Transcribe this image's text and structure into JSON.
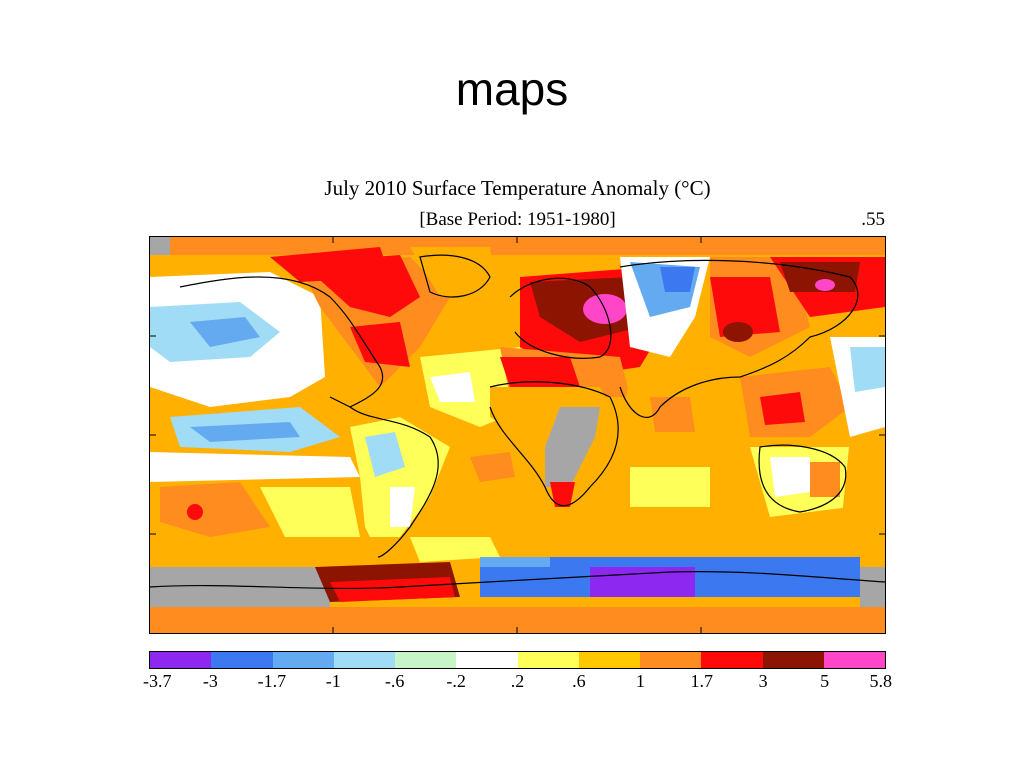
{
  "slide": {
    "title": "maps"
  },
  "map": {
    "title": "July 2010 Surface Temperature Anomaly (°C)",
    "subtitle": "[Base Period: 1951-1980]",
    "global_mean": ".55",
    "no_data_color": "#a6a6a6"
  },
  "legend": {
    "colors": [
      "#8c28f0",
      "#3c78f0",
      "#64aaf0",
      "#a0dcf5",
      "#c8f5c8",
      "#ffffff",
      "#ffff5a",
      "#ffc800",
      "#ff8c1e",
      "#ff0a0a",
      "#8c1400",
      "#ff46c8"
    ],
    "labels": [
      "-3.7",
      "-3",
      "-1.7",
      "-1",
      "-.6",
      "-.2",
      ".2",
      ".6",
      "1",
      "1.7",
      "3",
      "5",
      "5.8"
    ]
  }
}
